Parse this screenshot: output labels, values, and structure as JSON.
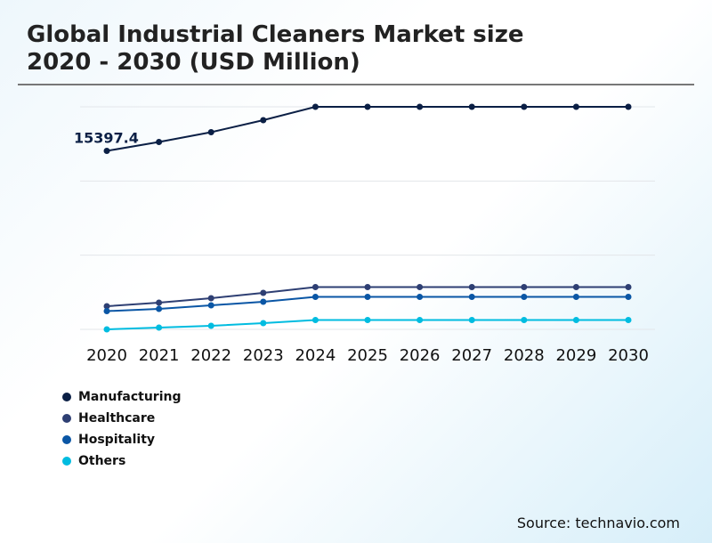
{
  "chart_data": {
    "type": "line",
    "title": "Global Industrial Cleaners Market size 2020 - 2030 (USD Million)",
    "x": [
      "2020",
      "2021",
      "2022",
      "2023",
      "2024",
      "2025",
      "2026",
      "2027",
      "2028",
      "2029",
      "2030"
    ],
    "ylim": [
      0,
      19200
    ],
    "grid": true,
    "legend_position": "bottom-left",
    "annotations": [
      {
        "series": "Manufacturing",
        "x": "2020",
        "label": "15397.4"
      }
    ],
    "series": [
      {
        "name": "Manufacturing",
        "color": "#0b1f45",
        "values": [
          15397.4,
          16166,
          17011,
          18048,
          19200,
          19200,
          19200,
          19200,
          19200,
          19200,
          19200
        ]
      },
      {
        "name": "Healthcare",
        "color": "#2e3f73",
        "values": [
          1997,
          2304,
          2688,
          3149,
          3648,
          3648,
          3648,
          3648,
          3648,
          3648,
          3648
        ]
      },
      {
        "name": "Hospitality",
        "color": "#0a56a5",
        "values": [
          1574,
          1766,
          2074,
          2381,
          2803,
          2803,
          2803,
          2803,
          2803,
          2803,
          2803
        ]
      },
      {
        "name": "Others",
        "color": "#00bce0",
        "values": [
          0,
          154,
          307,
          538,
          806,
          806,
          806,
          806,
          806,
          806,
          806
        ]
      }
    ]
  },
  "title_line1": "Global Industrial Cleaners Market size",
  "title_line2": "2020 - 2030 (USD Million)",
  "source": "Source: technavio.com"
}
